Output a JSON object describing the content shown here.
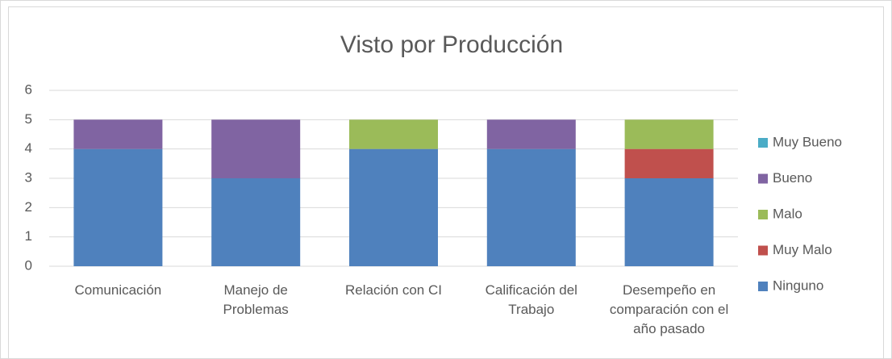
{
  "chart_data": {
    "type": "stacked_bar",
    "title": "Visto por Producción",
    "categories": [
      "Comunicación",
      "Manejo de Problemas",
      "Relación con CI",
      "Calificación del Trabajo",
      "Desempeño en comparación con el año pasado"
    ],
    "series": [
      {
        "name": "Ninguno",
        "color": "#4f81bd",
        "values": [
          4,
          3,
          4,
          4,
          3
        ]
      },
      {
        "name": "Muy Malo",
        "color": "#c0504d",
        "values": [
          0,
          0,
          0,
          0,
          1
        ]
      },
      {
        "name": "Malo",
        "color": "#9bbb59",
        "values": [
          0,
          0,
          1,
          0,
          1
        ]
      },
      {
        "name": "Bueno",
        "color": "#8064a2",
        "values": [
          1,
          2,
          0,
          1,
          0
        ]
      },
      {
        "name": "Muy Bueno",
        "color": "#4bacc6",
        "values": [
          0,
          0,
          0,
          0,
          0
        ]
      }
    ],
    "ylim": [
      0,
      6
    ],
    "yticks": [
      0,
      1,
      2,
      3,
      4,
      5,
      6
    ],
    "grid": true,
    "legend": "right"
  }
}
